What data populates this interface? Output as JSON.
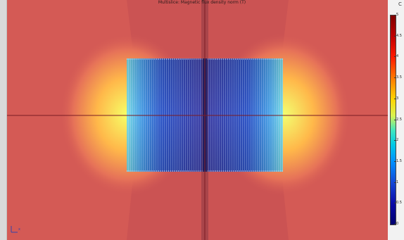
{
  "plot": {
    "title": "Multislice: Magnetic flux density norm (T)"
  },
  "colorbar": {
    "ticks": [
      "5",
      "4.5",
      "4",
      "3.5",
      "3",
      "2.5",
      "2",
      "1.5",
      "1",
      "0.5",
      "0"
    ],
    "range": [
      0,
      5
    ],
    "unit": "T"
  },
  "colors": {
    "outer_field": "#d45a55",
    "coil_core": "#3a3fa8",
    "axis_line": "#7a1c24"
  },
  "triad": {
    "label": "x"
  },
  "corner_glyph": "C"
}
